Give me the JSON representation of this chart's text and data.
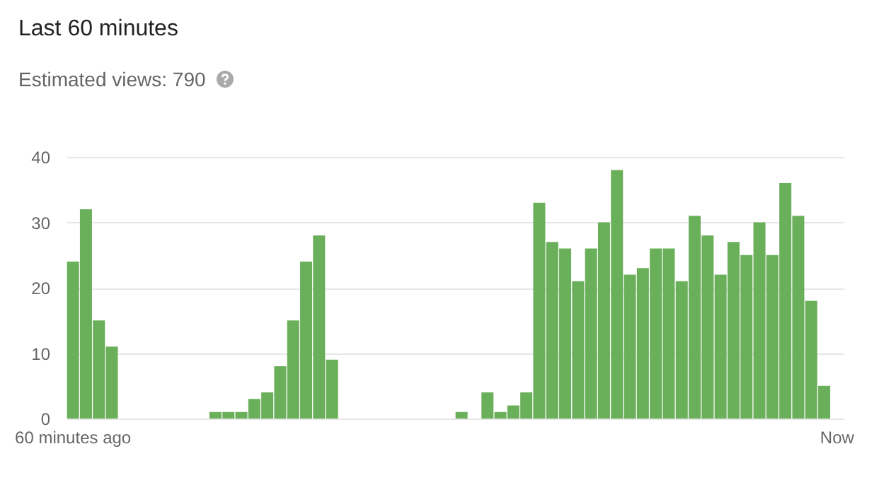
{
  "chart_data": {
    "type": "bar",
    "title": "Last 60 minutes",
    "subtitle": "Estimated views: 790",
    "categories": [
      "60 minutes ago",
      null,
      null,
      null,
      null,
      null,
      null,
      null,
      null,
      null,
      null,
      null,
      null,
      null,
      null,
      null,
      null,
      null,
      null,
      null,
      null,
      null,
      null,
      null,
      null,
      null,
      null,
      null,
      null,
      null,
      null,
      null,
      null,
      null,
      null,
      null,
      null,
      null,
      null,
      null,
      null,
      null,
      null,
      null,
      null,
      null,
      null,
      null,
      null,
      null,
      null,
      null,
      null,
      null,
      null,
      null,
      null,
      null,
      null,
      "Now"
    ],
    "values": [
      24,
      32,
      15,
      11,
      0,
      0,
      0,
      0,
      0,
      0,
      0,
      1,
      1,
      1,
      3,
      4,
      8,
      15,
      24,
      28,
      9,
      0,
      0,
      0,
      0,
      0,
      0,
      0,
      0,
      0,
      1,
      0,
      4,
      1,
      2,
      4,
      33,
      27,
      26,
      21,
      26,
      30,
      38,
      22,
      23,
      26,
      26,
      21,
      31,
      28,
      22,
      27,
      25,
      30,
      25,
      36,
      31,
      18,
      5,
      0
    ],
    "color": "#6aaf5a",
    "ylim": [
      0,
      40
    ],
    "yticks": [
      0,
      10,
      20,
      30,
      40
    ],
    "grid": "y"
  }
}
